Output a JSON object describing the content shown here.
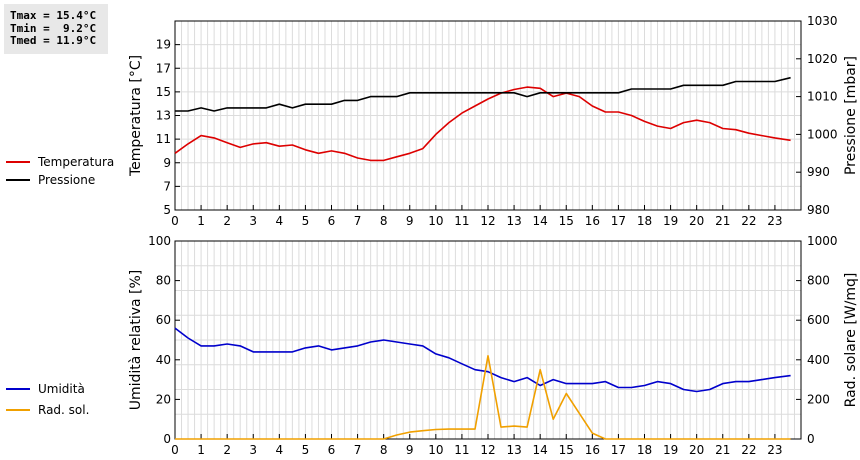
{
  "stats": {
    "tmax": "Tmax = 15.4°C",
    "tmin": "Tmin =  9.2°C",
    "tmed": "Tmed = 11.9°C"
  },
  "chart_data": [
    {
      "type": "line",
      "xlabel": "",
      "ylabel": "Temperatura [°C]",
      "y2label": "Pressione [mbar]",
      "xlim": [
        0,
        24
      ],
      "ylim": [
        5,
        21
      ],
      "y2lim": [
        980,
        1030
      ],
      "xticks": [
        "0",
        "1",
        "2",
        "3",
        "4",
        "5",
        "6",
        "7",
        "8",
        "9",
        "10",
        "11",
        "12",
        "13",
        "14",
        "15",
        "16",
        "17",
        "18",
        "19",
        "20",
        "21",
        "22",
        "23"
      ],
      "yticks": [
        "5",
        "7",
        "9",
        "11",
        "13",
        "15",
        "17",
        "19"
      ],
      "y2ticks": [
        "980",
        "990",
        "1000",
        "1010",
        "1020",
        "1030"
      ],
      "grid": true,
      "legend_position": "left",
      "series": [
        {
          "name": "Temperatura",
          "color": "#dd0000",
          "axis": "left",
          "x": [
            0,
            0.5,
            1,
            1.5,
            2,
            2.5,
            3,
            3.5,
            4,
            4.5,
            5,
            5.5,
            6,
            6.5,
            7,
            7.5,
            8,
            8.5,
            9,
            9.5,
            10,
            10.5,
            11,
            11.5,
            12,
            12.5,
            13,
            13.5,
            14,
            14.5,
            15,
            15.5,
            16,
            16.5,
            17,
            17.5,
            18,
            18.5,
            19,
            19.5,
            20,
            20.5,
            21,
            21.5,
            22,
            22.5,
            23,
            23.6
          ],
          "y": [
            9.8,
            10.6,
            11.3,
            11.1,
            10.7,
            10.3,
            10.6,
            10.7,
            10.4,
            10.5,
            10.1,
            9.8,
            10.0,
            9.8,
            9.4,
            9.2,
            9.2,
            9.5,
            9.8,
            10.2,
            11.4,
            12.4,
            13.2,
            13.8,
            14.4,
            14.9,
            15.2,
            15.4,
            15.3,
            14.6,
            14.9,
            14.6,
            13.8,
            13.3,
            13.3,
            13.0,
            12.5,
            12.1,
            11.9,
            12.4,
            12.6,
            12.4,
            11.9,
            11.8,
            11.5,
            11.3,
            11.1,
            10.9
          ]
        },
        {
          "name": "Pressione",
          "color": "#000000",
          "axis": "right",
          "x": [
            0,
            0.5,
            1,
            1.5,
            2,
            2.5,
            3,
            3.5,
            4,
            4.5,
            5,
            5.5,
            6,
            6.5,
            7,
            7.5,
            8,
            8.5,
            9,
            9.5,
            10,
            10.5,
            11,
            11.5,
            12,
            12.5,
            13,
            13.5,
            14,
            14.5,
            15,
            15.5,
            16,
            16.5,
            17,
            17.5,
            18,
            18.5,
            19,
            19.5,
            20,
            20.5,
            21,
            21.5,
            22,
            22.5,
            23,
            23.6
          ],
          "y": [
            1006.2,
            1006.2,
            1007,
            1006.2,
            1007,
            1007,
            1007,
            1007,
            1008,
            1007,
            1008,
            1008,
            1008,
            1009,
            1009,
            1010,
            1010,
            1010,
            1011,
            1011,
            1011,
            1011,
            1011,
            1011,
            1011,
            1011,
            1011,
            1010,
            1011,
            1011,
            1011,
            1011,
            1011,
            1011,
            1011,
            1012,
            1012,
            1012,
            1012,
            1013,
            1013,
            1013,
            1013,
            1014,
            1014,
            1014,
            1014,
            1015
          ]
        }
      ]
    },
    {
      "type": "line",
      "xlabel": "",
      "ylabel": "Umidità relativa [%]",
      "y2label": "Rad. solare [W/mq]",
      "xlim": [
        0,
        24
      ],
      "ylim": [
        0,
        100
      ],
      "y2lim": [
        0,
        1000
      ],
      "xticks": [
        "0",
        "1",
        "2",
        "3",
        "4",
        "5",
        "6",
        "7",
        "8",
        "9",
        "10",
        "11",
        "12",
        "13",
        "14",
        "15",
        "16",
        "17",
        "18",
        "19",
        "20",
        "21",
        "22",
        "23"
      ],
      "yticks": [
        "0",
        "20",
        "40",
        "60",
        "80",
        "100"
      ],
      "y2ticks": [
        "0",
        "200",
        "400",
        "600",
        "800",
        "1000"
      ],
      "grid": true,
      "legend_position": "left",
      "series": [
        {
          "name": "Umidità",
          "color": "#0000cc",
          "axis": "left",
          "x": [
            0,
            0.5,
            1,
            1.5,
            2,
            2.5,
            3,
            3.5,
            4,
            4.5,
            5,
            5.5,
            6,
            6.5,
            7,
            7.5,
            8,
            8.5,
            9,
            9.5,
            10,
            10.5,
            11,
            11.5,
            12,
            12.5,
            13,
            13.5,
            14,
            14.5,
            15,
            15.5,
            16,
            16.5,
            17,
            17.5,
            18,
            18.5,
            19,
            19.5,
            20,
            20.5,
            21,
            21.5,
            22,
            22.5,
            23,
            23.6
          ],
          "y": [
            56,
            51,
            47,
            47,
            48,
            47,
            44,
            44,
            44,
            44,
            46,
            47,
            45,
            46,
            47,
            49,
            50,
            49,
            48,
            47,
            43,
            41,
            38,
            35,
            34,
            31,
            29,
            31,
            27,
            30,
            28,
            28,
            28,
            29,
            26,
            26,
            27,
            29,
            28,
            25,
            24,
            25,
            28,
            29,
            29,
            30,
            31,
            32
          ]
        },
        {
          "name": "Rad. sol.",
          "color": "#f0a000",
          "axis": "right",
          "x": [
            0,
            0.5,
            1,
            1.5,
            2,
            2.5,
            3,
            3.5,
            4,
            4.5,
            5,
            5.5,
            6,
            6.5,
            7,
            7.5,
            8,
            8.5,
            9,
            9.5,
            10,
            10.5,
            11,
            11.5,
            12,
            12.5,
            13,
            13.5,
            14,
            14.5,
            15,
            15.5,
            16,
            16.5,
            17,
            17.5,
            18,
            18.5,
            19,
            19.5,
            20,
            20.5,
            21,
            21.5,
            22,
            22.5,
            23,
            23.6
          ],
          "y": [
            0,
            0,
            0,
            0,
            0,
            0,
            0,
            0,
            0,
            0,
            0,
            0,
            0,
            0,
            0,
            0,
            0,
            20,
            35,
            42,
            48,
            50,
            50,
            50,
            420,
            60,
            65,
            60,
            350,
            100,
            230,
            130,
            30,
            0,
            0,
            0,
            0,
            0,
            0,
            0,
            0,
            0,
            0,
            0,
            0,
            0,
            0,
            0
          ]
        }
      ]
    }
  ]
}
